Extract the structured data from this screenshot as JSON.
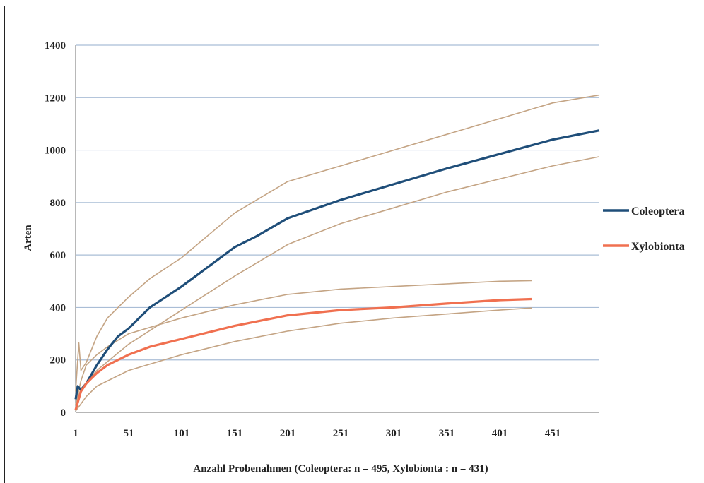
{
  "chart_data": {
    "type": "line",
    "title": "",
    "xlabel": "Anzahl Probenahmen (Coleoptera: n = 495, Xylobionta : n = 431)",
    "ylabel": "Arten",
    "xlim": [
      1,
      495
    ],
    "ylim": [
      0,
      1400
    ],
    "x_ticks": [
      "1",
      "51",
      "101",
      "151",
      "201",
      "251",
      "301",
      "351",
      "401",
      "451"
    ],
    "y_ticks": [
      "0",
      "200",
      "400",
      "600",
      "800",
      "1000",
      "1200",
      "1400"
    ],
    "grid": "horizontal",
    "legend_position": "right",
    "series": [
      {
        "name": "Coleoptera",
        "role": "main",
        "color": "#1f4e79",
        "x": [
          1,
          3,
          6,
          11,
          21,
          31,
          41,
          51,
          71,
          101,
          131,
          151,
          171,
          201,
          251,
          301,
          351,
          401,
          451,
          495
        ],
        "values": [
          50,
          100,
          85,
          110,
          180,
          240,
          290,
          320,
          400,
          480,
          570,
          630,
          670,
          740,
          810,
          870,
          930,
          985,
          1040,
          1075
        ]
      },
      {
        "name": "Coleoptera upper",
        "role": "bound",
        "color": "#c4a484",
        "x": [
          1,
          4,
          6,
          11,
          21,
          31,
          51,
          71,
          101,
          151,
          201,
          251,
          301,
          351,
          401,
          451,
          495
        ],
        "values": [
          80,
          265,
          160,
          190,
          290,
          360,
          440,
          510,
          590,
          760,
          880,
          940,
          1000,
          1060,
          1120,
          1180,
          1210
        ]
      },
      {
        "name": "Coleoptera lower",
        "role": "bound",
        "color": "#c4a484",
        "x": [
          1,
          6,
          21,
          51,
          101,
          151,
          201,
          251,
          301,
          351,
          401,
          451,
          495
        ],
        "values": [
          30,
          90,
          160,
          260,
          390,
          520,
          640,
          720,
          780,
          840,
          890,
          940,
          975
        ]
      },
      {
        "name": "Xylobionta",
        "role": "main",
        "color": "#f07050",
        "x": [
          1,
          6,
          11,
          21,
          31,
          51,
          71,
          101,
          151,
          201,
          251,
          301,
          351,
          401,
          431
        ],
        "values": [
          10,
          80,
          110,
          150,
          180,
          220,
          250,
          280,
          330,
          370,
          390,
          400,
          415,
          428,
          432
        ]
      },
      {
        "name": "Xylobionta upper",
        "role": "bound",
        "color": "#c4a484",
        "x": [
          1,
          6,
          11,
          21,
          31,
          51,
          101,
          151,
          201,
          251,
          301,
          351,
          401,
          431
        ],
        "values": [
          30,
          120,
          180,
          220,
          250,
          300,
          360,
          410,
          450,
          470,
          480,
          490,
          500,
          502
        ]
      },
      {
        "name": "Xylobionta lower",
        "role": "bound",
        "color": "#c4a484",
        "x": [
          1,
          11,
          21,
          51,
          101,
          151,
          201,
          251,
          301,
          351,
          401,
          431
        ],
        "values": [
          5,
          60,
          100,
          160,
          220,
          270,
          310,
          340,
          360,
          375,
          390,
          398
        ]
      }
    ],
    "legend": [
      {
        "label": "Coleoptera",
        "color": "#1f4e79"
      },
      {
        "label": "Xylobionta",
        "color": "#f07050"
      }
    ]
  }
}
